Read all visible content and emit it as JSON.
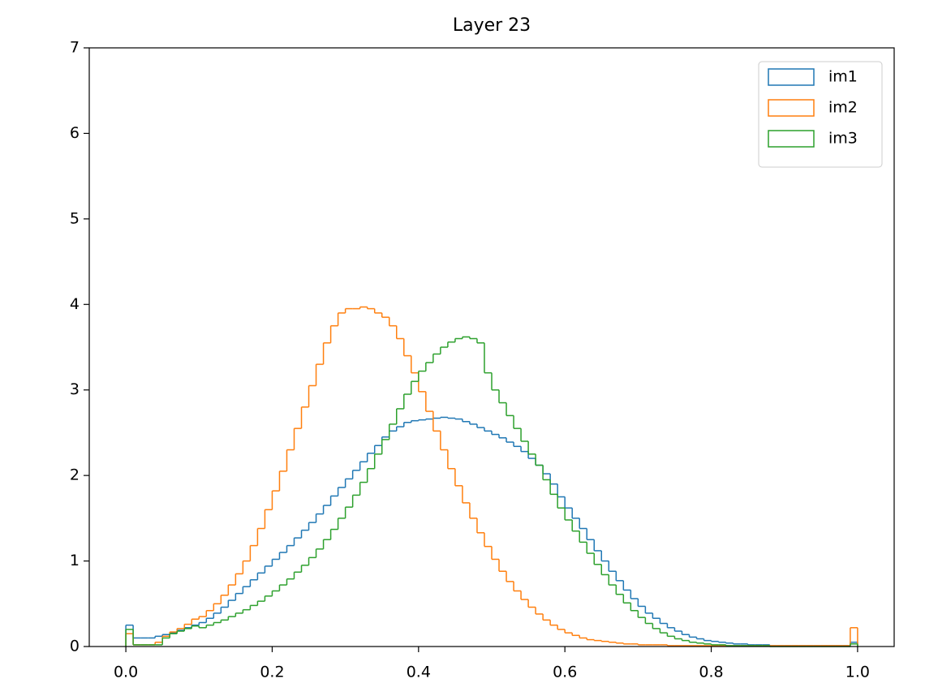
{
  "chart_data": {
    "type": "histogram",
    "title": "Layer 23",
    "bins": [
      0,
      0.01,
      0.02,
      0.03,
      0.04,
      0.05,
      0.06,
      0.07,
      0.08,
      0.09,
      0.1,
      0.11,
      0.12,
      0.13,
      0.14,
      0.15,
      0.16,
      0.17,
      0.18,
      0.19,
      0.2,
      0.21,
      0.22,
      0.23,
      0.24,
      0.25,
      0.26,
      0.27,
      0.28,
      0.29,
      0.3,
      0.31,
      0.32,
      0.33,
      0.34,
      0.35,
      0.36,
      0.37,
      0.38,
      0.39,
      0.4,
      0.41,
      0.42,
      0.43,
      0.44,
      0.45,
      0.46,
      0.47,
      0.48,
      0.49,
      0.5,
      0.51,
      0.52,
      0.53,
      0.54,
      0.55,
      0.56,
      0.57,
      0.58,
      0.59,
      0.6,
      0.61,
      0.62,
      0.63,
      0.64,
      0.65,
      0.66,
      0.67,
      0.68,
      0.69,
      0.7,
      0.71,
      0.72,
      0.73,
      0.74,
      0.75,
      0.76,
      0.77,
      0.78,
      0.79,
      0.8,
      0.81,
      0.82,
      0.83,
      0.84,
      0.85,
      0.86,
      0.87,
      0.88,
      0.89,
      0.9,
      0.91,
      0.92,
      0.93,
      0.94,
      0.95,
      0.96,
      0.97,
      0.98,
      0.99,
      1.0
    ],
    "series": [
      {
        "name": "im1",
        "color": "#1f77b4",
        "values": [
          0.25,
          0.1,
          0.1,
          0.1,
          0.12,
          0.14,
          0.16,
          0.19,
          0.22,
          0.25,
          0.28,
          0.33,
          0.39,
          0.46,
          0.54,
          0.62,
          0.7,
          0.78,
          0.86,
          0.94,
          1.02,
          1.1,
          1.18,
          1.27,
          1.36,
          1.45,
          1.55,
          1.65,
          1.76,
          1.86,
          1.96,
          2.06,
          2.16,
          2.26,
          2.35,
          2.45,
          2.52,
          2.57,
          2.62,
          2.64,
          2.65,
          2.66,
          2.67,
          2.68,
          2.67,
          2.66,
          2.63,
          2.6,
          2.56,
          2.52,
          2.48,
          2.44,
          2.39,
          2.34,
          2.28,
          2.2,
          2.12,
          2.02,
          1.9,
          1.75,
          1.62,
          1.5,
          1.38,
          1.25,
          1.12,
          1.0,
          0.88,
          0.77,
          0.66,
          0.56,
          0.47,
          0.39,
          0.33,
          0.27,
          0.22,
          0.18,
          0.14,
          0.11,
          0.09,
          0.07,
          0.06,
          0.05,
          0.04,
          0.03,
          0.03,
          0.02,
          0.02,
          0.02,
          0.01,
          0.01,
          0.01,
          0.01,
          0.01,
          0.01,
          0.01,
          0.01,
          0.01,
          0.01,
          0.01,
          0.05
        ]
      },
      {
        "name": "im2",
        "color": "#ff7f0e",
        "values": [
          0.15,
          0.02,
          0.02,
          0.02,
          0.05,
          0.12,
          0.17,
          0.21,
          0.26,
          0.32,
          0.35,
          0.42,
          0.5,
          0.6,
          0.72,
          0.85,
          1.0,
          1.18,
          1.38,
          1.6,
          1.82,
          2.05,
          2.3,
          2.55,
          2.8,
          3.05,
          3.3,
          3.55,
          3.75,
          3.9,
          3.95,
          3.95,
          3.97,
          3.95,
          3.9,
          3.85,
          3.75,
          3.6,
          3.4,
          3.2,
          2.98,
          2.75,
          2.52,
          2.3,
          2.08,
          1.88,
          1.68,
          1.5,
          1.33,
          1.17,
          1.02,
          0.88,
          0.76,
          0.65,
          0.55,
          0.46,
          0.38,
          0.31,
          0.25,
          0.2,
          0.16,
          0.13,
          0.1,
          0.08,
          0.07,
          0.06,
          0.05,
          0.04,
          0.03,
          0.03,
          0.02,
          0.02,
          0.02,
          0.02,
          0.01,
          0.01,
          0.01,
          0.01,
          0.01,
          0.01,
          0.01,
          0.01,
          0.01,
          0.01,
          0.01,
          0.01,
          0.01,
          0.01,
          0.01,
          0.01,
          0.01,
          0.01,
          0.01,
          0.01,
          0.01,
          0.01,
          0.01,
          0.01,
          0.01,
          0.22
        ]
      },
      {
        "name": "im3",
        "color": "#2ca02c",
        "values": [
          0.2,
          0.02,
          0.02,
          0.02,
          0.02,
          0.1,
          0.15,
          0.18,
          0.21,
          0.24,
          0.22,
          0.25,
          0.28,
          0.31,
          0.35,
          0.39,
          0.43,
          0.48,
          0.53,
          0.59,
          0.65,
          0.72,
          0.79,
          0.87,
          0.95,
          1.04,
          1.14,
          1.25,
          1.37,
          1.5,
          1.63,
          1.77,
          1.92,
          2.08,
          2.25,
          2.42,
          2.6,
          2.78,
          2.95,
          3.1,
          3.22,
          3.32,
          3.42,
          3.5,
          3.56,
          3.6,
          3.62,
          3.6,
          3.55,
          3.2,
          3.0,
          2.85,
          2.7,
          2.55,
          2.4,
          2.25,
          2.12,
          1.95,
          1.78,
          1.62,
          1.48,
          1.35,
          1.22,
          1.09,
          0.96,
          0.84,
          0.72,
          0.61,
          0.51,
          0.42,
          0.34,
          0.27,
          0.21,
          0.16,
          0.12,
          0.09,
          0.07,
          0.05,
          0.04,
          0.03,
          0.02,
          0.02,
          0.01,
          0.01,
          0.01,
          0.01,
          0.01,
          0.01,
          0,
          0,
          0,
          0,
          0,
          0,
          0,
          0,
          0,
          0,
          0,
          0.03
        ]
      }
    ],
    "xlim": [
      -0.05,
      1.05
    ],
    "ylim": [
      0,
      7
    ],
    "xticks": [
      {
        "value": 0,
        "label": "0.0"
      },
      {
        "value": 0.2,
        "label": "0.2"
      },
      {
        "value": 0.4,
        "label": "0.4"
      },
      {
        "value": 0.6,
        "label": "0.6"
      },
      {
        "value": 0.8,
        "label": "0.8"
      },
      {
        "value": 1,
        "label": "1.0"
      }
    ],
    "yticks": [
      0,
      1,
      2,
      3,
      4,
      5,
      6,
      7
    ],
    "legend": "upper right",
    "grid": false
  }
}
